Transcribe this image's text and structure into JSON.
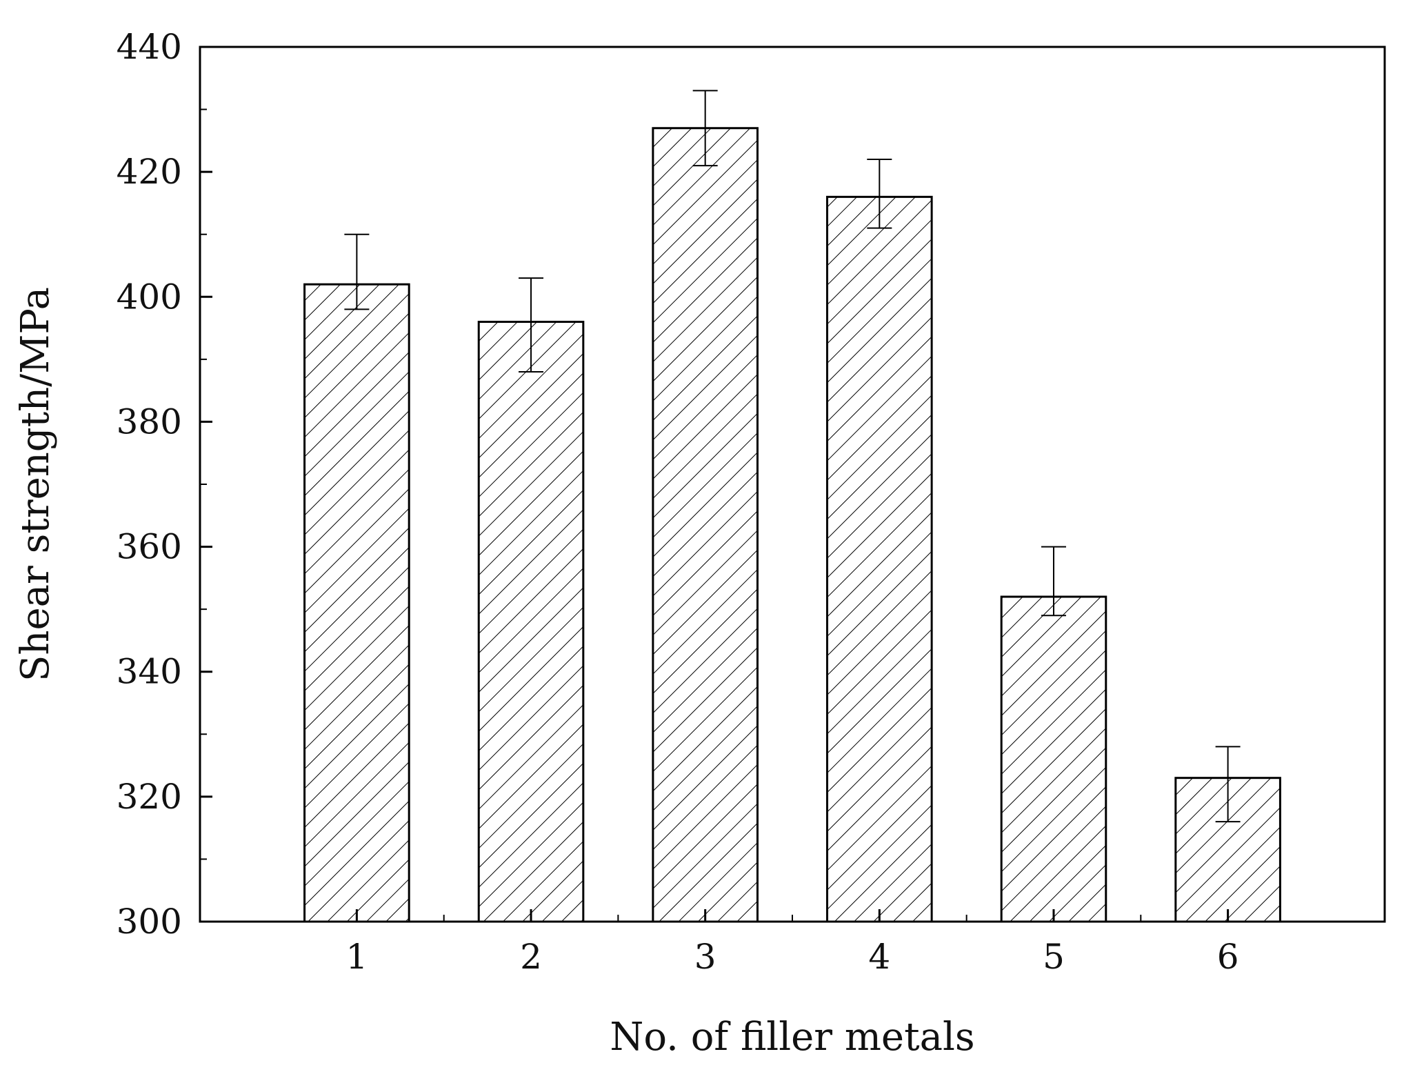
{
  "chart_data": {
    "type": "bar",
    "title": "",
    "xlabel": "No. of filler metals",
    "ylabel": "Shear strength/MPa",
    "categories": [
      "1",
      "2",
      "3",
      "4",
      "5",
      "6"
    ],
    "values": [
      402,
      396,
      427,
      416,
      352,
      323
    ],
    "error_low": [
      398,
      388,
      421,
      411,
      349,
      316
    ],
    "error_high": [
      410,
      403,
      433,
      422,
      360,
      328
    ],
    "ylim": [
      300,
      440
    ],
    "yticks": [
      300,
      320,
      340,
      360,
      380,
      400,
      420,
      440
    ],
    "y_minor_step": 10,
    "bar_fill": "hatched diagonal",
    "legend": "none",
    "grid": false,
    "colors": {
      "bar_edge": "#000000",
      "hatch": "#000000",
      "background": "#ffffff"
    }
  }
}
